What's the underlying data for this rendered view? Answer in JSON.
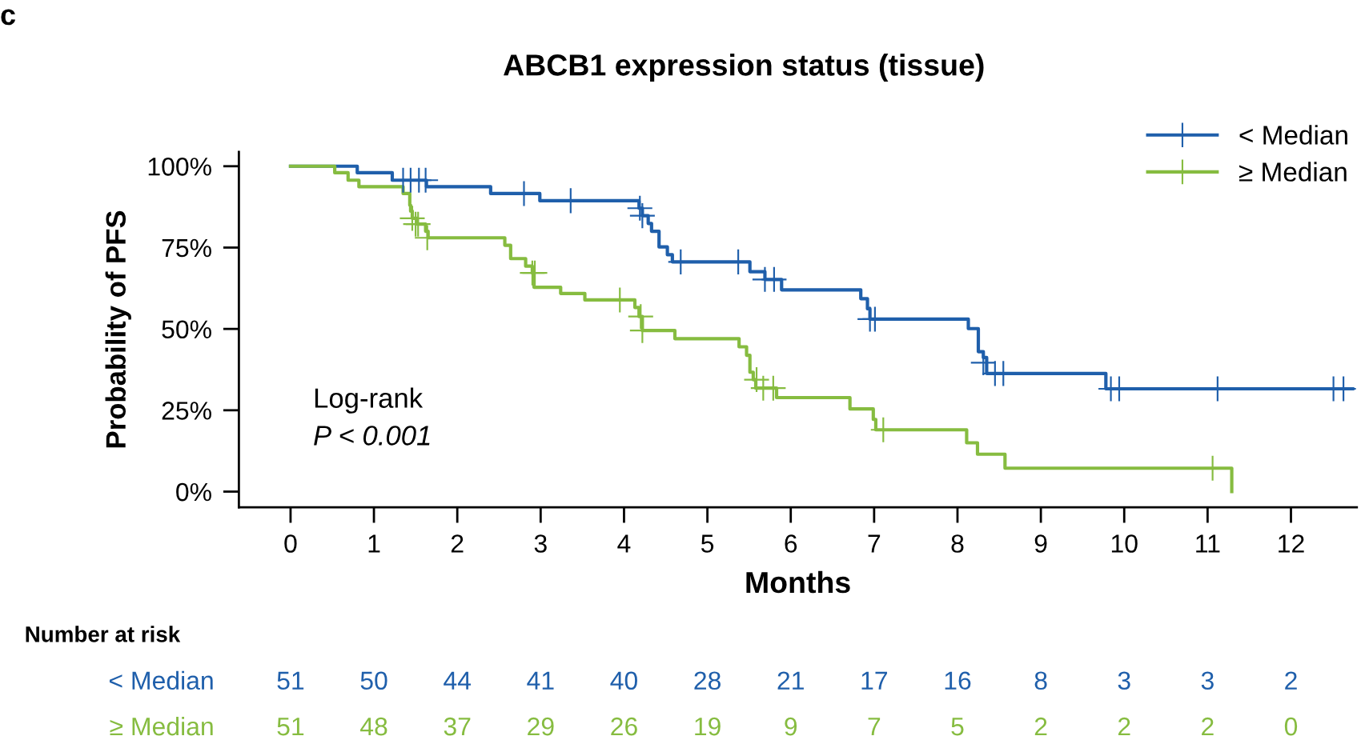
{
  "chart_data": {
    "type": "step",
    "title": "ABCB1 expression status (tissue)",
    "xlabel": "Months",
    "ylabel": "Probability of PFS",
    "xlim": [
      -0.62,
      12.79
    ],
    "ylim": [
      -4.8,
      104.4
    ],
    "xticks": [
      0,
      1,
      2,
      3,
      4,
      5,
      6,
      7,
      8,
      9,
      10,
      11,
      12
    ],
    "yticks": [
      {
        "value": 0,
        "label": "0%"
      },
      {
        "value": 25,
        "label": "25%"
      },
      {
        "value": 50,
        "label": "50%"
      },
      {
        "value": 75,
        "label": "75%"
      },
      {
        "value": 100,
        "label": "100%"
      }
    ],
    "legend": "top right",
    "grid": false,
    "line_style": "solid",
    "series": [
      {
        "name": "< Median",
        "color": "#1f5fab",
        "x": [
          0,
          0.8,
          1.22,
          1.63,
          2.4,
          2.99,
          4.18,
          4.22,
          4.29,
          4.33,
          4.42,
          4.52,
          4.58,
          5.51,
          5.69,
          5.89,
          6.84,
          6.92,
          6.95,
          8.13,
          8.25,
          8.31,
          8.35,
          9.78,
          12.74
        ],
        "values": [
          100,
          98.0,
          95.7,
          93.7,
          91.6,
          89.4,
          87.1,
          84.8,
          82.4,
          80.0,
          75.2,
          72.8,
          70.6,
          67.6,
          65.2,
          62.0,
          59.3,
          56.2,
          53.0,
          50.1,
          43.0,
          41.2,
          36.3,
          31.6,
          31.6
        ]
      },
      {
        "name": "≥ Median",
        "color": "#86bc40",
        "x": [
          0,
          0.53,
          0.69,
          0.82,
          1.35,
          1.43,
          1.44,
          1.46,
          1.52,
          1.62,
          1.65,
          2.57,
          2.64,
          2.82,
          2.9,
          2.92,
          3.24,
          3.53,
          4.13,
          4.18,
          4.22,
          4.61,
          5.38,
          5.47,
          5.51,
          5.55,
          5.58,
          5.83,
          6.71,
          6.99,
          7.02,
          8.11,
          8.24,
          8.57,
          11.29,
          11.29
        ],
        "values": [
          100,
          98.0,
          95.7,
          93.7,
          91.6,
          88.0,
          86.2,
          84.0,
          82.2,
          80.0,
          78.0,
          75.7,
          71.6,
          69.3,
          67.2,
          62.8,
          60.9,
          58.9,
          56.6,
          53.8,
          49.5,
          47.0,
          44.5,
          41.9,
          36.7,
          34.4,
          31.8,
          28.9,
          25.4,
          22.2,
          19.0,
          15.0,
          11.5,
          7.2,
          7.2,
          0
        ]
      },
      {
        "color": "#1f5fab",
        "type": "scatter",
        "marker": "cross",
        "x": [
          1.35,
          1.44,
          1.54,
          1.62,
          2.8,
          3.36,
          4.19,
          4.22,
          4.68,
          5.37,
          5.69,
          5.8,
          6.95,
          7.01,
          8.31,
          8.45,
          8.55,
          9.84,
          9.94,
          11.12,
          12.51,
          12.63
        ],
        "values": [
          95.7,
          95.7,
          95.7,
          95.7,
          91.6,
          89.4,
          87.1,
          84.8,
          70.6,
          70.6,
          65.2,
          65.2,
          53.0,
          53.0,
          39.6,
          36.3,
          36.3,
          31.6,
          31.6,
          31.6,
          31.6,
          31.6
        ]
      },
      {
        "color": "#86bc40",
        "type": "scatter",
        "marker": "cross",
        "x": [
          1.46,
          1.5,
          1.53,
          1.64,
          2.9,
          2.93,
          3.95,
          4.2,
          4.22,
          5.59,
          5.67,
          5.79,
          7.11,
          11.06
        ],
        "values": [
          84.0,
          82.2,
          82.2,
          78.0,
          67.2,
          67.2,
          58.9,
          53.8,
          49.5,
          34.4,
          31.8,
          31.8,
          19.0,
          7.2
        ]
      }
    ],
    "annotations": [
      "c",
      "Log-rank",
      "P < 0.001",
      "Number at risk",
      "< Median",
      "51",
      "50",
      "44",
      "41",
      "40",
      "28",
      "21",
      "17",
      "16",
      "8",
      "3",
      "3",
      "2",
      "≥ Median",
      "51",
      "48",
      "37",
      "29",
      "26",
      "19",
      "9",
      "7",
      "5",
      "2",
      "2",
      "2",
      "0"
    ]
  }
}
